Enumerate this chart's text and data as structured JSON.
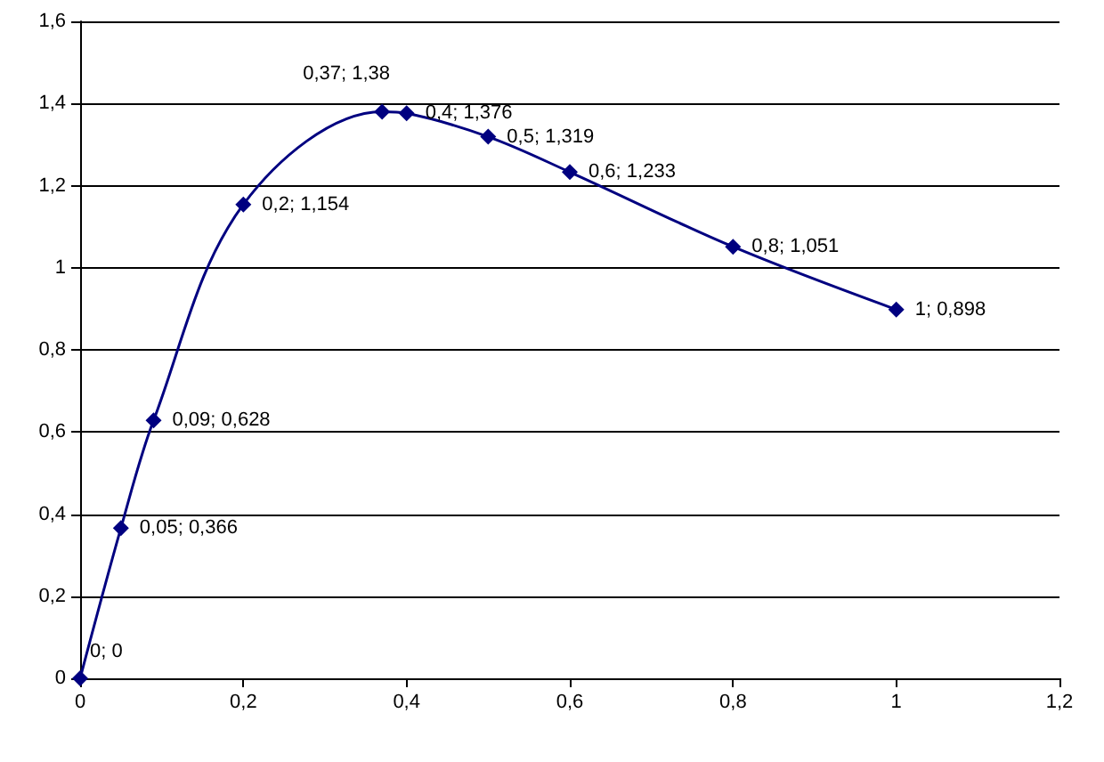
{
  "chart_data": {
    "type": "line",
    "x": [
      0,
      0.05,
      0.09,
      0.2,
      0.37,
      0.4,
      0.5,
      0.6,
      0.8,
      1
    ],
    "series": [
      {
        "color": "#000080",
        "values": [
          0,
          0.366,
          0.628,
          1.154,
          1.38,
          1.376,
          1.319,
          1.233,
          1.051,
          0.898
        ],
        "value_labels": [
          "0; 0",
          "0,05; 0,366",
          "0,09; 0,628",
          "0,2; 1,154",
          "0,37; 1,38",
          "0,4; 1,376",
          "0,5; 1,319",
          "0,6; 1,233",
          "0,8; 1,051",
          "1; 0,898"
        ]
      }
    ],
    "xlim": [
      0,
      1.2
    ],
    "xticks": [
      0,
      {
        "value": 0.2,
        "label": "0,2"
      },
      {
        "value": 0.4,
        "label": "0,4"
      },
      {
        "value": 0.6,
        "label": "0,6"
      },
      {
        "value": 0.8,
        "label": "0,8"
      },
      1,
      {
        "value": 1.2,
        "label": "1,2"
      }
    ],
    "ylim": [
      0,
      1.6
    ],
    "yticks": [
      0,
      {
        "value": 0.2,
        "label": "0,2"
      },
      {
        "value": 0.4,
        "label": "0,4"
      },
      {
        "value": 0.6,
        "label": "0,6"
      },
      {
        "value": 0.8,
        "label": "0,8"
      },
      1,
      {
        "value": 1.2,
        "label": "1,2"
      },
      {
        "value": 1.4,
        "label": "1,4"
      },
      {
        "value": 1.6,
        "label": "1,6"
      }
    ],
    "grid": "y",
    "marker": "diamond",
    "line_style": "solid"
  }
}
